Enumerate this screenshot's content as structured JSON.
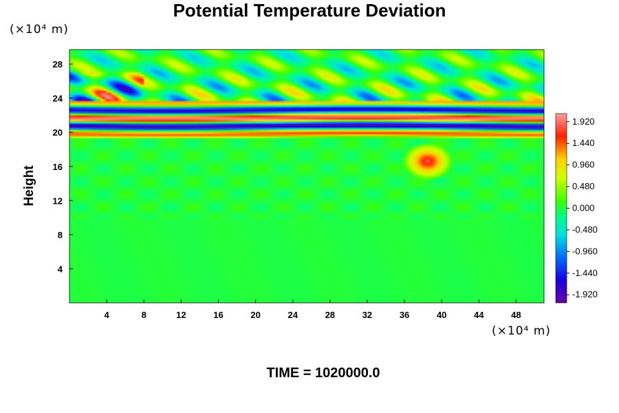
{
  "chart_data": {
    "type": "heatmap",
    "title": "Potential Temperature Deviation",
    "ylabel": "Height",
    "y_unit_label": "(×10⁴ m)",
    "x_unit_label": "(×10⁴ m)",
    "footer": "TIME = 1020000.0",
    "xlim": [
      0,
      51
    ],
    "ylim": [
      0,
      29.7
    ],
    "x_ticks": [
      4,
      8,
      12,
      16,
      20,
      24,
      28,
      32,
      36,
      40,
      44,
      48
    ],
    "y_ticks": [
      4,
      8,
      12,
      16,
      20,
      24,
      28
    ],
    "colorbar": {
      "min": -2.1,
      "max": 2.1,
      "tick_labels": [
        "1.920",
        "1.440",
        "0.960",
        "0.480",
        "0.000",
        "-0.480",
        "-0.960",
        "-1.440",
        "-1.920"
      ],
      "tick_values": [
        1.92,
        1.44,
        0.96,
        0.48,
        0.0,
        -0.48,
        -0.96,
        -1.44,
        -1.92
      ]
    },
    "field_features": [
      {
        "description": "banded oscillation layer",
        "y_range": [
          19.5,
          23.5
        ],
        "amplitude": 1.9
      },
      {
        "description": "wave field",
        "y_range": [
          23.5,
          29.7
        ],
        "amplitude": 0.9
      },
      {
        "description": "near-neutral lower region",
        "y_range": [
          0,
          19.5
        ],
        "amplitude": 0.1
      },
      {
        "description": "warm anomaly",
        "x": 38.5,
        "y": 16.5,
        "value": 1.6
      }
    ]
  }
}
